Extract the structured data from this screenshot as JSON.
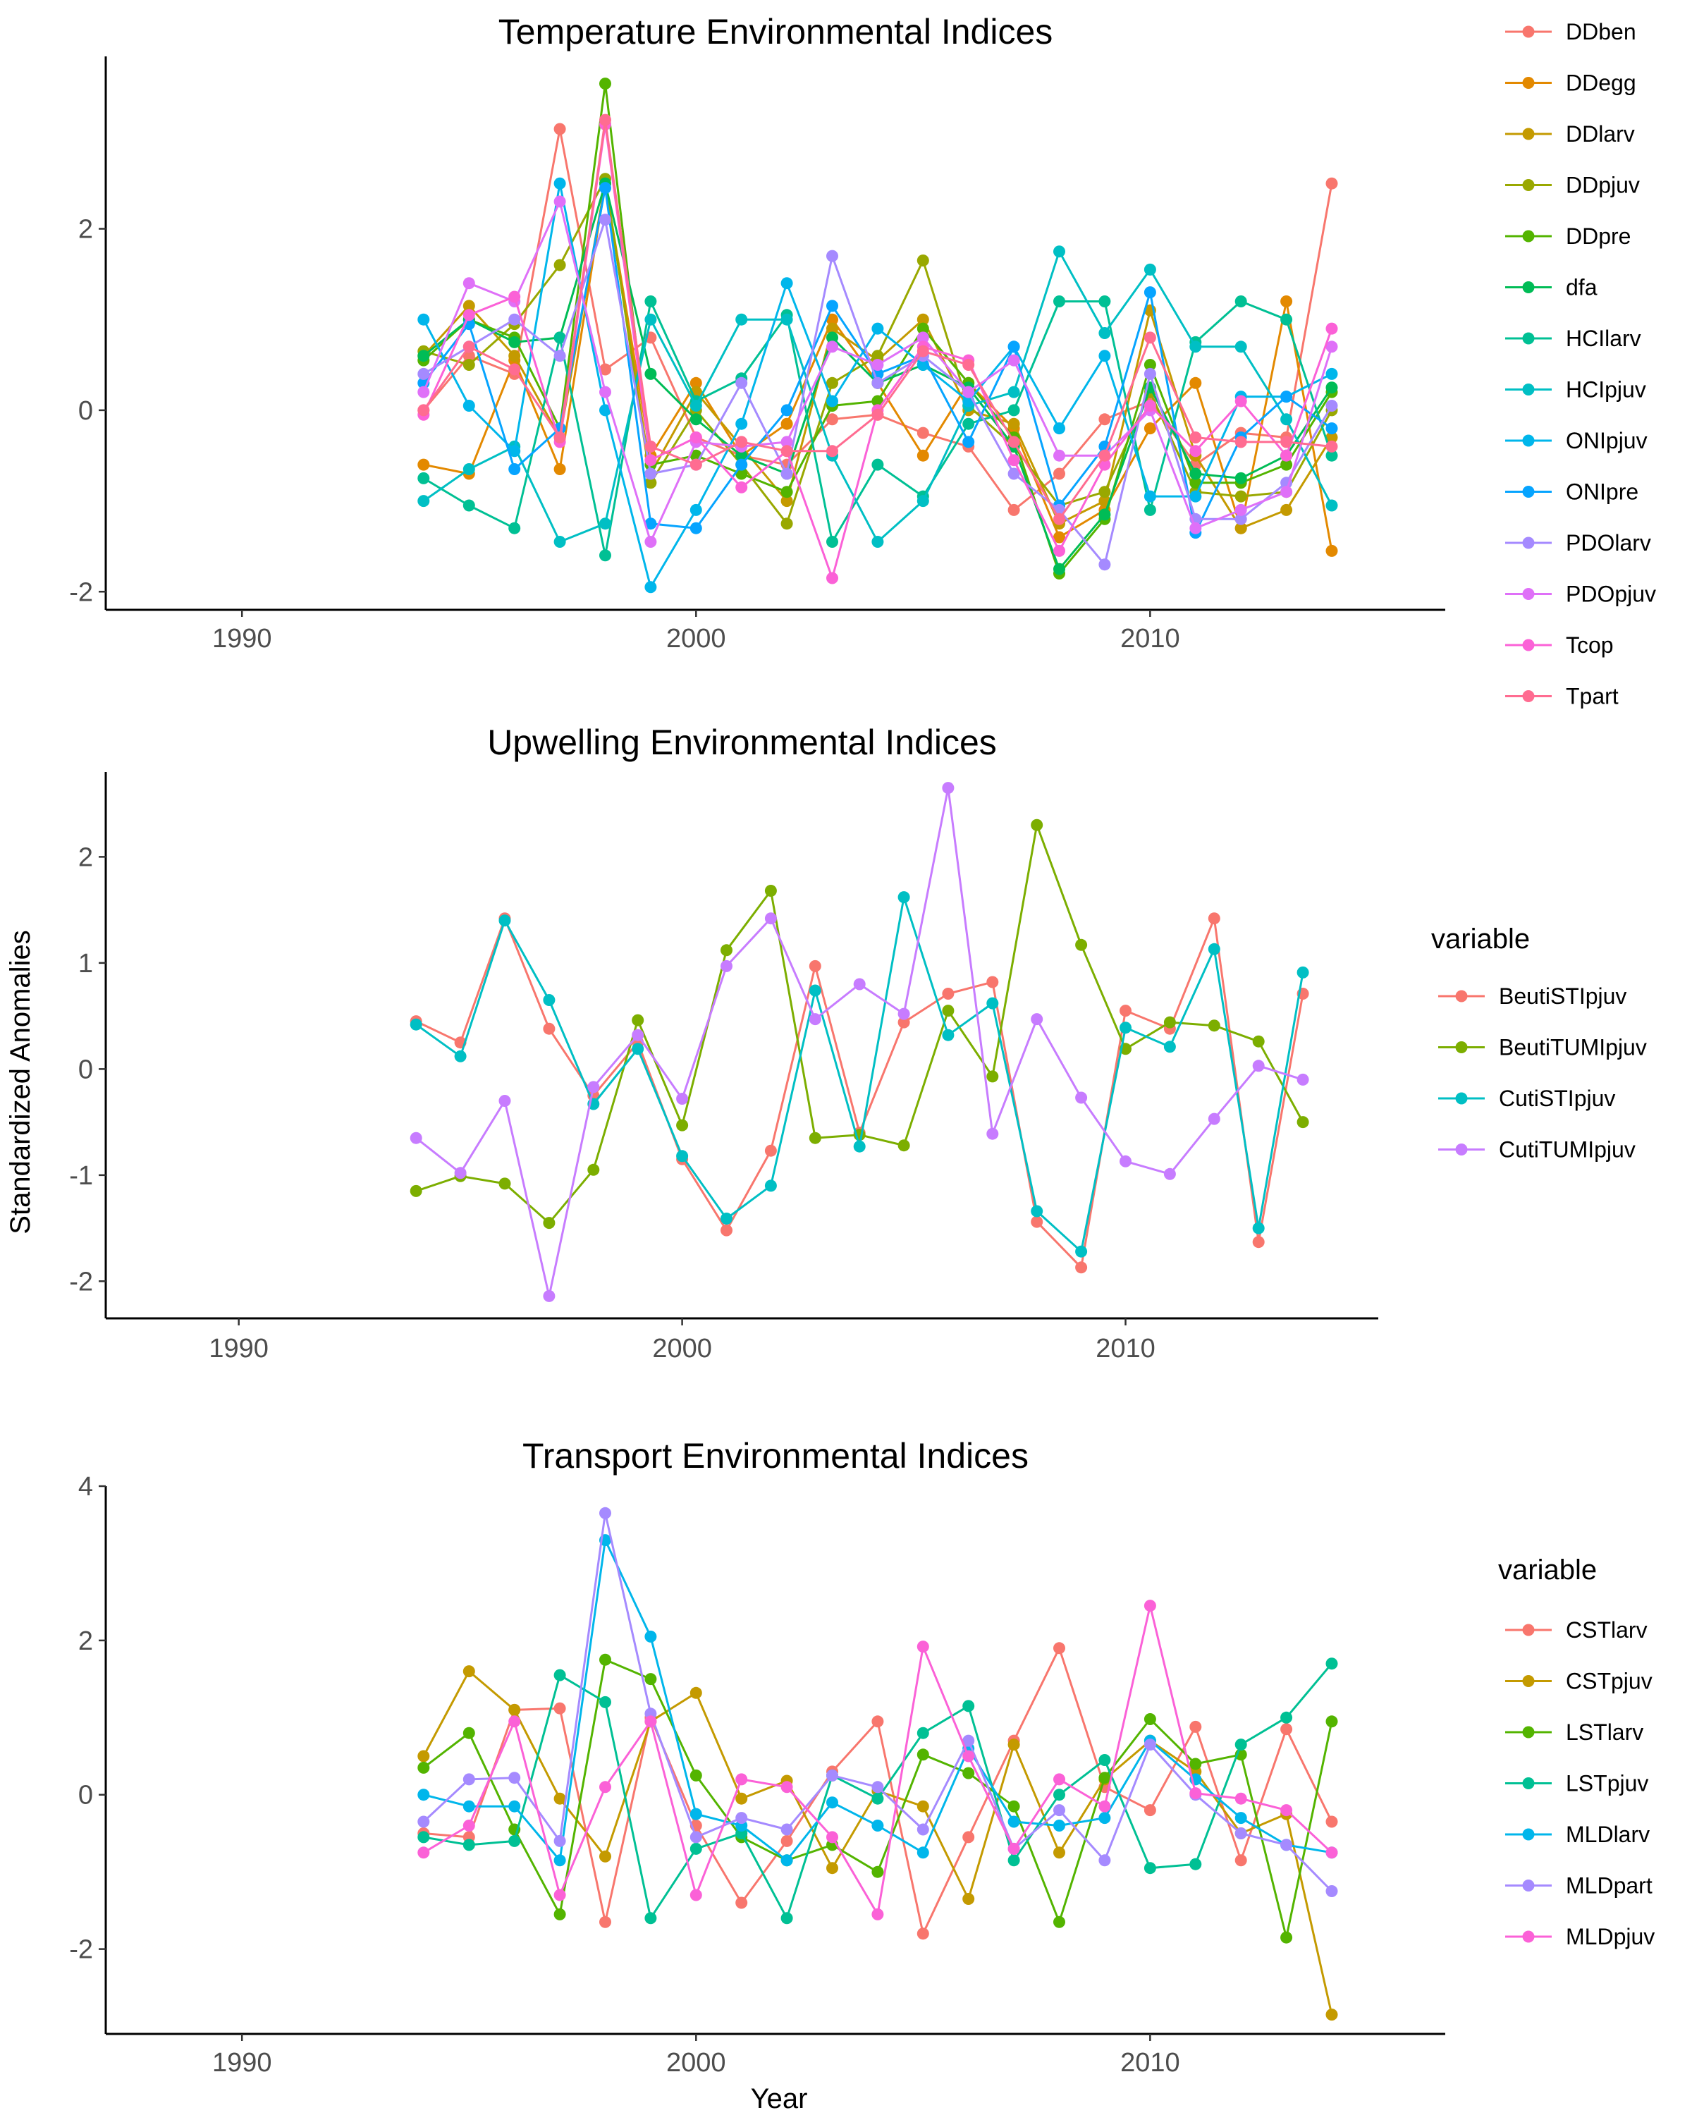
{
  "figure": {
    "ylabel": "Standardized Anomalies",
    "xlabel": "Year"
  },
  "chart_data": [
    {
      "type": "line",
      "title": "Temperature Environmental Indices",
      "legend_title": "",
      "legend_position": "right",
      "xlim": [
        1987,
        2016.5
      ],
      "ylim": [
        -2.2,
        3.9
      ],
      "xticks": [
        1990,
        2000,
        2010
      ],
      "yticks": [
        -2,
        0,
        2
      ],
      "x": [
        1994,
        1995,
        1996,
        1997,
        1998,
        1999,
        2000,
        2001,
        2002,
        2003,
        2004,
        2005,
        2006,
        2007,
        2008,
        2009,
        2010,
        2011,
        2012,
        2013,
        2014
      ],
      "series": [
        {
          "name": "DDben",
          "color": "#F8766D",
          "values": [
            0.0,
            0.6,
            0.4,
            3.1,
            0.45,
            0.8,
            -0.3,
            -0.5,
            -0.6,
            -0.1,
            -0.05,
            -0.25,
            -0.4,
            -1.1,
            -0.7,
            -0.1,
            0.1,
            -0.6,
            -0.25,
            -0.3,
            2.5
          ]
        },
        {
          "name": "DDegg",
          "color": "#E38900",
          "values": [
            -0.6,
            -0.7,
            0.55,
            -0.65,
            2.5,
            -0.5,
            0.3,
            -0.5,
            -0.15,
            1.0,
            0.3,
            -0.5,
            0.3,
            -0.2,
            -1.4,
            -1.1,
            -0.2,
            0.3,
            -1.3,
            1.2,
            -1.55
          ]
        },
        {
          "name": "DDlarv",
          "color": "#C49A00",
          "values": [
            0.6,
            1.15,
            0.6,
            -0.3,
            2.5,
            -0.7,
            0.2,
            -0.4,
            -1.0,
            0.9,
            0.55,
            1.0,
            0.0,
            -0.15,
            -1.25,
            -1.0,
            1.1,
            -0.5,
            -1.3,
            -1.1,
            -0.3
          ]
        },
        {
          "name": "DDpjuv",
          "color": "#99A800",
          "values": [
            0.65,
            0.5,
            0.95,
            1.6,
            2.55,
            -0.8,
            0.0,
            -0.6,
            -1.25,
            0.3,
            0.6,
            1.65,
            0.05,
            -0.4,
            -1.05,
            -0.9,
            0.2,
            -0.9,
            -0.95,
            -0.9,
            0.0
          ]
        },
        {
          "name": "DDpre",
          "color": "#53B400",
          "values": [
            0.55,
            1.0,
            0.8,
            -0.2,
            3.6,
            -0.6,
            -0.5,
            -0.7,
            -0.9,
            0.05,
            0.1,
            0.9,
            0.3,
            -0.3,
            -1.8,
            -1.2,
            0.5,
            -0.8,
            -0.8,
            -0.6,
            0.2
          ]
        },
        {
          "name": "dfa",
          "color": "#00BC56",
          "values": [
            0.6,
            1.0,
            0.75,
            0.8,
            2.5,
            0.4,
            -0.1,
            -0.5,
            -0.7,
            0.8,
            0.3,
            0.5,
            0.25,
            -0.4,
            -1.75,
            -1.15,
            0.25,
            -0.7,
            -0.75,
            -0.5,
            0.25
          ]
        },
        {
          "name": "HCIlarv",
          "color": "#00C094",
          "values": [
            -0.75,
            -1.05,
            -1.3,
            0.8,
            -1.6,
            1.2,
            0.1,
            0.35,
            1.05,
            -1.45,
            -0.6,
            -0.95,
            -0.15,
            0.0,
            1.2,
            1.2,
            -1.1,
            0.75,
            1.2,
            1.0,
            -0.5
          ]
        },
        {
          "name": "HCIpjuv",
          "color": "#00BFC4",
          "values": [
            -1.0,
            -0.65,
            -0.4,
            -1.45,
            -1.25,
            1.0,
            0.05,
            1.0,
            1.0,
            -0.5,
            -1.45,
            -1.0,
            0.05,
            0.2,
            1.75,
            0.85,
            1.55,
            0.7,
            0.7,
            -0.1,
            -1.05
          ]
        },
        {
          "name": "ONIpjuv",
          "color": "#00B6EB",
          "values": [
            1.0,
            0.05,
            -0.45,
            2.5,
            0.0,
            -1.95,
            -1.1,
            -0.15,
            1.4,
            0.1,
            0.9,
            0.5,
            0.1,
            0.7,
            -0.2,
            0.6,
            -0.95,
            -0.95,
            0.15,
            0.15,
            0.4
          ]
        },
        {
          "name": "ONIpre",
          "color": "#06A4FF",
          "values": [
            0.3,
            0.95,
            -0.65,
            -0.2,
            2.45,
            -1.25,
            -1.3,
            -0.6,
            0.0,
            1.15,
            0.4,
            0.6,
            -0.35,
            0.7,
            -1.05,
            -0.4,
            1.3,
            -1.35,
            -0.3,
            0.15,
            -0.2
          ]
        },
        {
          "name": "PDOlarv",
          "color": "#A58AFF",
          "values": [
            0.4,
            0.7,
            1.0,
            0.6,
            2.1,
            -0.7,
            -0.6,
            0.3,
            -0.7,
            1.7,
            0.3,
            0.6,
            0.2,
            -0.7,
            -1.1,
            -1.7,
            0.4,
            -1.2,
            -1.2,
            -0.8,
            0.05
          ]
        },
        {
          "name": "PDOpjuv",
          "color": "#DF70F8",
          "values": [
            0.2,
            1.4,
            1.2,
            2.3,
            0.2,
            -1.45,
            -0.35,
            -0.4,
            -0.35,
            0.7,
            0.5,
            0.8,
            0.2,
            0.55,
            -0.5,
            -0.5,
            0.0,
            -1.3,
            -1.1,
            -0.9,
            0.7
          ]
        },
        {
          "name": "Tcop",
          "color": "#FB61D7",
          "values": [
            -0.05,
            1.05,
            1.25,
            -0.35,
            3.15,
            -0.55,
            -0.3,
            -0.85,
            -0.45,
            -1.85,
            0.0,
            0.7,
            0.55,
            -0.55,
            -1.55,
            -0.6,
            0.05,
            -0.45,
            0.1,
            -0.5,
            0.9
          ]
        },
        {
          "name": "Tpart",
          "color": "#FF6C91",
          "values": [
            0.0,
            0.7,
            0.45,
            -0.3,
            3.2,
            -0.4,
            -0.6,
            -0.35,
            -0.45,
            -0.45,
            -0.05,
            0.65,
            0.5,
            -0.35,
            -1.2,
            -0.5,
            0.8,
            -0.3,
            -0.35,
            -0.35,
            -0.4
          ]
        }
      ]
    },
    {
      "type": "line",
      "title": "Upwelling Environmental Indices",
      "legend_title": "variable",
      "legend_position": "right",
      "xlim": [
        1987,
        2015.7
      ],
      "ylim": [
        -2.35,
        2.8
      ],
      "xticks": [
        1990,
        2000,
        2010
      ],
      "yticks": [
        -2,
        -1,
        0,
        1,
        2
      ],
      "x": [
        1994,
        1995,
        1996,
        1997,
        1998,
        1999,
        2000,
        2001,
        2002,
        2003,
        2004,
        2005,
        2006,
        2007,
        2008,
        2009,
        2010,
        2011,
        2012,
        2013,
        2014
      ],
      "series": [
        {
          "name": "BeutiSTIpjuv",
          "color": "#F8766D",
          "values": [
            0.45,
            0.25,
            1.42,
            0.38,
            -0.25,
            0.25,
            -0.85,
            -1.52,
            -0.77,
            0.97,
            -0.6,
            0.44,
            0.71,
            0.82,
            -1.44,
            -1.87,
            0.55,
            0.38,
            1.42,
            -1.63,
            0.71
          ]
        },
        {
          "name": "BeutiTUMIpjuv",
          "color": "#7CAE00",
          "values": [
            -1.15,
            -1.01,
            -1.08,
            -1.45,
            -0.95,
            0.46,
            -0.53,
            1.12,
            1.68,
            -0.65,
            -0.62,
            -0.72,
            0.55,
            -0.07,
            2.3,
            1.17,
            0.19,
            0.44,
            0.41,
            0.26,
            -0.5
          ]
        },
        {
          "name": "CutiSTIpjuv",
          "color": "#00BFC4",
          "values": [
            0.42,
            0.12,
            1.4,
            0.65,
            -0.33,
            0.19,
            -0.82,
            -1.41,
            -1.1,
            0.74,
            -0.73,
            1.62,
            0.32,
            0.62,
            -1.34,
            -1.72,
            0.39,
            0.21,
            1.13,
            -1.5,
            0.91
          ]
        },
        {
          "name": "CutiTUMIpjuv",
          "color": "#C77CFF",
          "values": [
            -0.65,
            -0.98,
            -0.3,
            -2.14,
            -0.17,
            0.32,
            -0.28,
            0.97,
            1.42,
            0.47,
            0.8,
            0.52,
            2.65,
            -0.61,
            0.47,
            -0.27,
            -0.87,
            -0.99,
            -0.47,
            0.03,
            -0.1
          ]
        }
      ]
    },
    {
      "type": "line",
      "title": "Transport Environmental Indices",
      "legend_title": "variable",
      "legend_position": "right",
      "xlim": [
        1987,
        2016.5
      ],
      "ylim": [
        -3.1,
        4.0
      ],
      "xticks": [
        1990,
        2000,
        2010
      ],
      "yticks": [
        -2,
        0,
        2,
        4
      ],
      "x": [
        1994,
        1995,
        1996,
        1997,
        1998,
        1999,
        2000,
        2001,
        2002,
        2003,
        2004,
        2005,
        2006,
        2007,
        2008,
        2009,
        2010,
        2011,
        2012,
        2013,
        2014
      ],
      "series": [
        {
          "name": "CSTlarv",
          "color": "#F8766D",
          "values": [
            -0.5,
            -0.55,
            1.1,
            1.12,
            -1.65,
            1.0,
            -0.4,
            -1.4,
            -0.6,
            0.3,
            0.95,
            -1.8,
            -0.55,
            0.7,
            1.9,
            0.1,
            -0.2,
            0.88,
            -0.85,
            0.85,
            -0.35
          ]
        },
        {
          "name": "CSTpjuv",
          "color": "#C49A00",
          "values": [
            0.5,
            1.6,
            1.1,
            -0.05,
            -0.8,
            0.95,
            1.32,
            -0.05,
            0.18,
            -0.95,
            0.05,
            -0.15,
            -1.35,
            0.65,
            -0.75,
            0.2,
            0.7,
            0.3,
            -0.5,
            -0.25,
            -2.85
          ]
        },
        {
          "name": "LSTlarv",
          "color": "#53B400",
          "values": [
            0.35,
            0.8,
            -0.45,
            -1.55,
            1.75,
            1.5,
            0.25,
            -0.55,
            -0.85,
            -0.65,
            -1.0,
            0.52,
            0.28,
            -0.15,
            -1.65,
            0.22,
            0.98,
            0.4,
            0.52,
            -1.85,
            0.95
          ]
        },
        {
          "name": "LSTpjuv",
          "color": "#00C094",
          "values": [
            -0.55,
            -0.65,
            -0.6,
            1.55,
            1.2,
            -1.6,
            -0.7,
            -0.5,
            -1.6,
            0.25,
            -0.05,
            0.8,
            1.15,
            -0.85,
            0.0,
            0.45,
            -0.95,
            -0.9,
            0.65,
            1.0,
            1.7
          ]
        },
        {
          "name": "MLDlarv",
          "color": "#00B6EB",
          "values": [
            0.0,
            -0.15,
            -0.15,
            -0.85,
            3.3,
            2.05,
            -0.25,
            -0.4,
            -0.85,
            -0.1,
            -0.4,
            -0.75,
            0.6,
            -0.35,
            -0.4,
            -0.3,
            0.7,
            0.2,
            -0.3,
            -0.65,
            -0.75
          ]
        },
        {
          "name": "MLDpart",
          "color": "#A58AFF",
          "values": [
            -0.35,
            0.2,
            0.22,
            -0.6,
            3.65,
            1.05,
            -0.55,
            -0.3,
            -0.45,
            0.25,
            0.1,
            -0.45,
            0.7,
            -0.7,
            -0.2,
            -0.85,
            0.65,
            0.0,
            -0.5,
            -0.65,
            -1.25
          ]
        },
        {
          "name": "MLDpjuv",
          "color": "#FB61D7",
          "values": [
            -0.75,
            -0.4,
            0.95,
            -1.3,
            0.1,
            0.95,
            -1.3,
            0.2,
            0.1,
            -0.55,
            -1.55,
            1.92,
            0.5,
            -0.7,
            0.2,
            -0.15,
            2.45,
            0.02,
            -0.05,
            -0.2,
            -0.75
          ]
        }
      ]
    }
  ]
}
